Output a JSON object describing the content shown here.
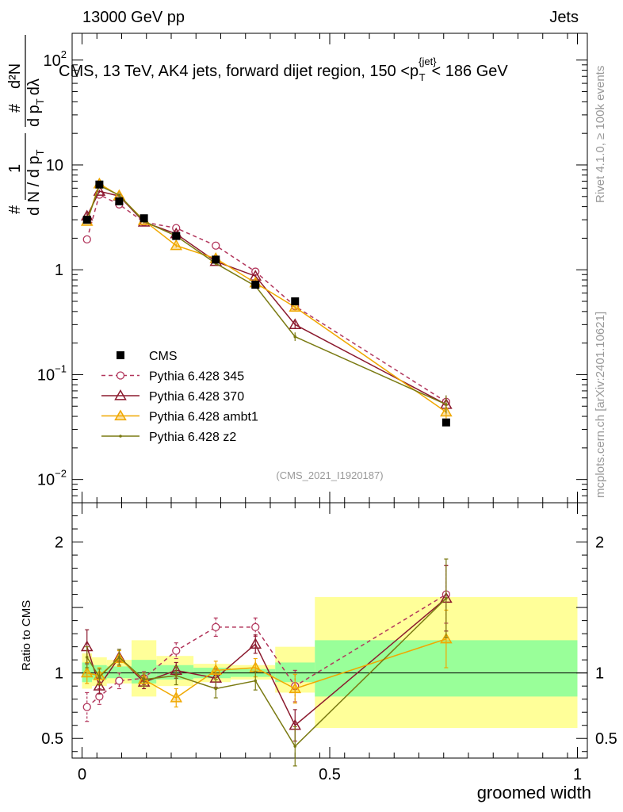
{
  "header": {
    "left": "13000 GeV pp",
    "right": "Jets"
  },
  "side_labels": {
    "rivet": "Rivet 4.1.0, ≥ 100k events",
    "mcplots": "mcplots.cern.ch [arXiv:2401.10621]"
  },
  "chart_data": {
    "type": "line",
    "title": "CMS, 13 TeV, AK4 jets, forward dijet region, 150 <p{jet}T< 186 GeV",
    "title_parts": {
      "main": "CMS, 13 TeV, AK4 jets, forward dijet region, 150 <p",
      "sup": "{jet}",
      "sub": "T",
      "tail": "< 186 GeV"
    },
    "analysis_label": "(CMS_2021_I1920187)",
    "xlabel": "groomed width",
    "ylabel_top": "1/N dN/dpT ... d²N/dpT dλ",
    "ylabel_parts": {
      "l1a": "#",
      "l1b": "1",
      "l2": "d N / d p",
      "l2sub": "T",
      "l3a": "#",
      "l3b": "d²N",
      "l4": "d p",
      "l4sub": "T",
      "l4b": "dλ"
    },
    "ylabel_ratio": "Ratio to CMS",
    "xlim": [
      -0.02,
      1.02
    ],
    "ylim_main": [
      0.006,
      180
    ],
    "ylim_ratio": [
      0.35,
      2.3
    ],
    "x_ticks": [
      0,
      0.5,
      1
    ],
    "x_tick_labels": [
      "0",
      "0.5",
      "1"
    ],
    "y_ticks_main": [
      {
        "value": 0.01,
        "base": "10",
        "exp": "−2"
      },
      {
        "value": 0.1,
        "base": "10",
        "exp": "−1"
      },
      {
        "value": 1,
        "base": "1",
        "exp": ""
      },
      {
        "value": 10,
        "base": "10",
        "exp": ""
      },
      {
        "value": 100,
        "base": "10",
        "exp": "2"
      }
    ],
    "y_ticks_ratio": [
      {
        "value": 0.5,
        "label": "0.5"
      },
      {
        "value": 1,
        "label": "1"
      },
      {
        "value": 2,
        "label": "2"
      }
    ],
    "x": [
      0.01,
      0.035,
      0.075,
      0.125,
      0.19,
      0.27,
      0.35,
      0.43,
      0.735
    ],
    "data": {
      "name": "CMS",
      "values": [
        3.0,
        6.5,
        4.5,
        3.1,
        2.1,
        1.25,
        0.72,
        0.5,
        0.035
      ],
      "color": "#000000"
    },
    "bands": [
      {
        "x0": 0.0,
        "x1": 0.02,
        "yellow": [
          0.88,
          1.15
        ],
        "green": [
          0.93,
          1.08
        ]
      },
      {
        "x0": 0.02,
        "x1": 0.05,
        "yellow": [
          0.9,
          1.12
        ],
        "green": [
          0.95,
          1.06
        ]
      },
      {
        "x0": 0.05,
        "x1": 0.1,
        "yellow": [
          0.92,
          1.1
        ],
        "green": [
          0.96,
          1.05
        ]
      },
      {
        "x0": 0.1,
        "x1": 0.15,
        "yellow": [
          0.82,
          1.25
        ],
        "green": [
          0.92,
          1.1
        ]
      },
      {
        "x0": 0.15,
        "x1": 0.225,
        "yellow": [
          0.9,
          1.13
        ],
        "green": [
          0.95,
          1.06
        ]
      },
      {
        "x0": 0.225,
        "x1": 0.3,
        "yellow": [
          0.93,
          1.07
        ],
        "green": [
          0.96,
          1.04
        ]
      },
      {
        "x0": 0.3,
        "x1": 0.39,
        "yellow": [
          0.95,
          1.06
        ],
        "green": [
          0.97,
          1.03
        ]
      },
      {
        "x0": 0.39,
        "x1": 0.47,
        "yellow": [
          0.85,
          1.2
        ],
        "green": [
          0.93,
          1.08
        ]
      },
      {
        "x0": 0.47,
        "x1": 1.0,
        "yellow": [
          0.58,
          1.58
        ],
        "green": [
          0.82,
          1.25
        ]
      }
    ],
    "series": [
      {
        "name": "Pythia 6.428 345",
        "color": "#b2365c",
        "marker": "circle",
        "dashed": true,
        "values": [
          1.95,
          5.2,
          4.2,
          2.85,
          2.5,
          1.7,
          0.96,
          0.45,
          0.055
        ],
        "ratio": [
          0.74,
          0.82,
          0.94,
          0.96,
          1.17,
          1.35,
          1.35,
          0.9,
          1.6
        ],
        "err": [
          0.11,
          0.06,
          0.06,
          0.05,
          0.06,
          0.07,
          0.07,
          0.12,
          0.22
        ]
      },
      {
        "name": "Pythia 6.428 370",
        "color": "#8b1a2e",
        "marker": "triangle",
        "dashed": false,
        "values": [
          3.25,
          5.6,
          5.05,
          2.85,
          2.2,
          1.2,
          0.87,
          0.3,
          0.052
        ],
        "ratio": [
          1.2,
          0.9,
          1.12,
          0.93,
          1.02,
          0.96,
          1.22,
          0.6,
          1.57
        ],
        "err": [
          0.13,
          0.06,
          0.06,
          0.05,
          0.06,
          0.07,
          0.07,
          0.12,
          0.25
        ]
      },
      {
        "name": "Pythia 6.428 ambt1",
        "color": "#f0a800",
        "marker": "triangle",
        "dashed": false,
        "values": [
          2.9,
          6.6,
          5.1,
          2.95,
          1.7,
          1.28,
          0.75,
          0.44,
          0.044
        ],
        "ratio": [
          1.0,
          0.98,
          1.11,
          0.95,
          0.81,
          1.02,
          1.04,
          0.88,
          1.26
        ],
        "err": [
          0.08,
          0.06,
          0.06,
          0.05,
          0.07,
          0.07,
          0.07,
          0.11,
          0.22
        ]
      },
      {
        "name": "Pythia 6.428 z2",
        "color": "#7a7a12",
        "marker": "dot",
        "dashed": false,
        "values": [
          2.9,
          6.35,
          5.15,
          2.9,
          2.1,
          1.15,
          0.7,
          0.23,
          0.052
        ],
        "ratio": [
          1.12,
          0.97,
          1.12,
          0.95,
          0.98,
          0.88,
          0.94,
          0.44,
          1.57
        ],
        "err": [
          0.08,
          0.06,
          0.06,
          0.05,
          0.07,
          0.07,
          0.07,
          0.15,
          0.3
        ]
      }
    ],
    "legend_position": "lower-left"
  }
}
